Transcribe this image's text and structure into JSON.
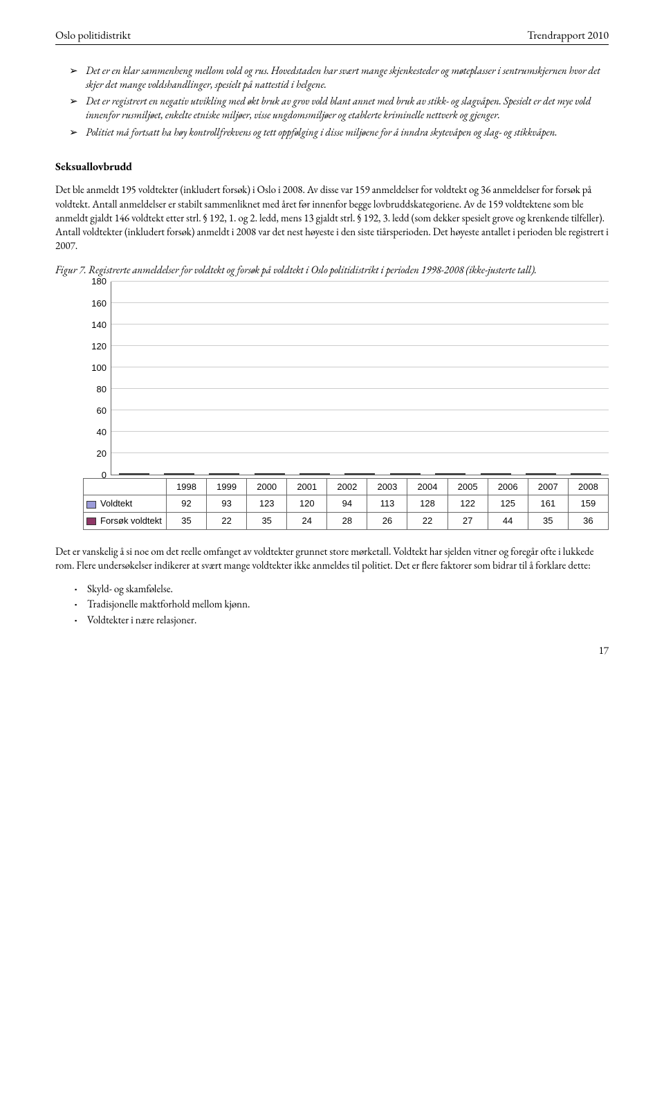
{
  "header": {
    "left": "Oslo politidistrikt",
    "right": "Trendrapport 2010"
  },
  "top_bullets": [
    "Det er en klar sammenheng mellom vold og rus. Hovedstaden har svært mange skjenkesteder og møteplasser i sentrumskjernen hvor det skjer det mange voldshandlinger, spesielt på nattestid i helgene.",
    "Det er registrert en negativ utvikling med økt bruk av grov vold blant annet med bruk av stikk- og slagvåpen. Spesielt er det mye vold innenfor rusmiljøet, enkelte etniske miljøer, visse ungdomsmiljøer og etablerte kriminelle nettverk og gjenger.",
    "Politiet må fortsatt ha høy kontrollfrekvens og tett oppfølging i disse miljøene for å inndra skytevåpen og slag- og stikkvåpen."
  ],
  "section_title": "Seksuallovbrudd",
  "para1": "Det ble anmeldt 195 voldtekter (inkludert forsøk) i Oslo i 2008. Av disse var 159 anmeldelser for voldtekt og 36 anmeldelser for forsøk på voldtekt. Antall anmeldelser er stabilt sammenliknet med året før innenfor begge lovbruddskategoriene. Av de 159 voldtektene som ble anmeldt gjaldt 146 voldtekt etter strl. § 192, 1. og 2. ledd, mens 13 gjaldt strl. § 192, 3. ledd (som dekker spesielt grove og krenkende tilfeller). Antall voldtekter (inkludert forsøk) anmeldt i 2008 var det nest høyeste i den siste tiårsperioden. Det høyeste antallet i perioden ble registrert i 2007.",
  "fig_caption": "Figur 7. Registrerte anmeldelser for voldtekt og forsøk på voldtekt i Oslo politidistrikt i perioden 1998-2008 (ikke-justerte tall).",
  "chart": {
    "type": "bar",
    "categories": [
      "1998",
      "1999",
      "2000",
      "2001",
      "2002",
      "2003",
      "2004",
      "2005",
      "2006",
      "2007",
      "2008"
    ],
    "series": [
      {
        "name": "Voldtekt",
        "color": "#9b9bd9",
        "values": [
          92,
          93,
          123,
          120,
          94,
          113,
          128,
          122,
          125,
          161,
          159
        ]
      },
      {
        "name": "Forsøk voldtekt",
        "color": "#8e3766",
        "values": [
          35,
          22,
          35,
          24,
          28,
          26,
          22,
          27,
          44,
          35,
          36
        ]
      }
    ],
    "ylim": [
      0,
      180
    ],
    "ytick_step": 20,
    "grid_color": "#cccccc",
    "axis_color": "#666666",
    "background_color": "#ffffff",
    "label_font": "Arial",
    "label_fontsize": 13
  },
  "para2": "Det er vanskelig å si noe om det reelle omfanget av voldtekter grunnet store mørketall. Voldtekt har sjelden vitner og foregår ofte i lukkede rom. Flere undersøkelser indikerer at svært mange voldtekter ikke anmeldes til politiet. Det er flere faktorer som bidrar til å forklare dette:",
  "small_bullets": [
    "Skyld- og skamfølelse.",
    "Tradisjonelle maktforhold mellom kjønn.",
    "Voldtekter i nære relasjoner."
  ],
  "page_num": "17"
}
